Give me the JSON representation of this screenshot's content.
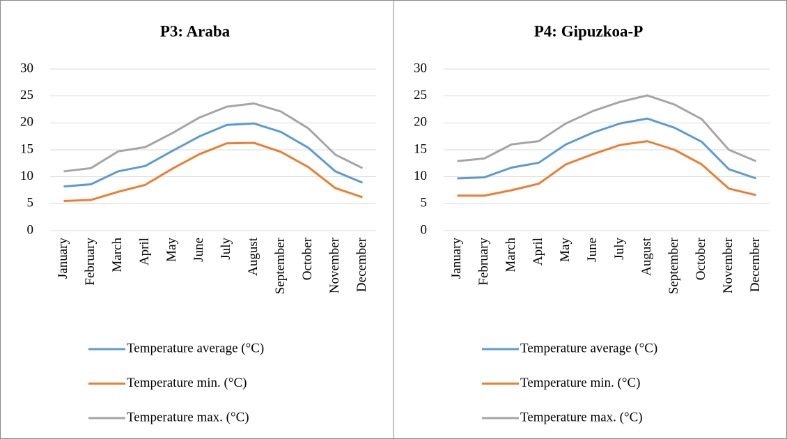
{
  "chart_data": [
    {
      "type": "line",
      "title": "P3: Araba",
      "categories": [
        "January",
        "February",
        "March",
        "April",
        "May",
        "June",
        "July",
        "August",
        "September",
        "October",
        "November",
        "December"
      ],
      "ylim": [
        0,
        30
      ],
      "yticks": [
        0,
        5,
        10,
        15,
        20,
        25,
        30
      ],
      "grid": true,
      "legend": "bottom",
      "series": [
        {
          "name": "Temperature average (°C)",
          "color": "#5b9bd5",
          "values": [
            8.2,
            8.6,
            11.0,
            12.0,
            14.8,
            17.5,
            19.6,
            19.9,
            18.3,
            15.4,
            11.0,
            8.9
          ]
        },
        {
          "name": "Temperature min. (°C)",
          "color": "#ed7d31",
          "values": [
            5.5,
            5.7,
            7.2,
            8.5,
            11.5,
            14.2,
            16.2,
            16.3,
            14.6,
            11.8,
            7.9,
            6.2
          ]
        },
        {
          "name": "Temperature max. (°C)",
          "color": "#a5a5a5",
          "values": [
            11.0,
            11.6,
            14.7,
            15.5,
            18.1,
            21.0,
            23.0,
            23.6,
            22.1,
            19.0,
            14.1,
            11.6
          ]
        }
      ]
    },
    {
      "type": "line",
      "title": "P4: Gipuzkoa-P",
      "categories": [
        "January",
        "February",
        "March",
        "April",
        "May",
        "June",
        "July",
        "August",
        "September",
        "October",
        "November",
        "December"
      ],
      "ylim": [
        0,
        30
      ],
      "yticks": [
        0,
        5,
        10,
        15,
        20,
        25,
        30
      ],
      "grid": true,
      "legend": "bottom",
      "series": [
        {
          "name": "Temperature average (°C)",
          "color": "#5b9bd5",
          "values": [
            9.7,
            9.9,
            11.7,
            12.6,
            16.0,
            18.2,
            19.9,
            20.8,
            19.1,
            16.5,
            11.4,
            9.7
          ]
        },
        {
          "name": "Temperature min. (°C)",
          "color": "#ed7d31",
          "values": [
            6.5,
            6.5,
            7.5,
            8.7,
            12.3,
            14.2,
            15.9,
            16.6,
            15.0,
            12.3,
            7.8,
            6.6
          ]
        },
        {
          "name": "Temperature max. (°C)",
          "color": "#a5a5a5",
          "values": [
            12.9,
            13.4,
            16.0,
            16.6,
            19.9,
            22.2,
            23.9,
            25.1,
            23.4,
            20.7,
            15.0,
            12.9
          ]
        }
      ]
    }
  ]
}
